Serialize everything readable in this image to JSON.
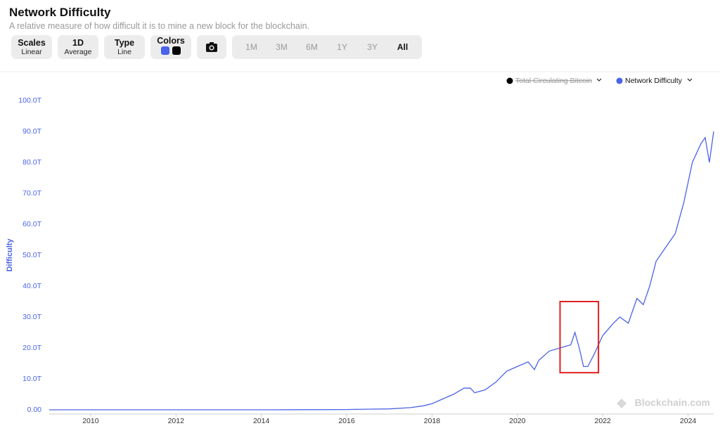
{
  "header": {
    "title": "Network Difficulty",
    "subtitle": "A relative measure of how difficult it is to mine a new block for the blockchain."
  },
  "controls": {
    "scales": {
      "label": "Scales",
      "value": "Linear"
    },
    "resolution": {
      "label": "1D",
      "value": "Average"
    },
    "type": {
      "label": "Type",
      "value": "Line"
    },
    "colors": {
      "label": "Colors"
    },
    "ranges": [
      "1M",
      "3M",
      "6M",
      "1Y",
      "3Y",
      "All"
    ],
    "selected_range": "All"
  },
  "watermark": "Blockchain.com",
  "chart_data": {
    "type": "line",
    "ylabel": "Difficulty",
    "x": [
      2009.03,
      2010,
      2011,
      2012,
      2013,
      2014,
      2015,
      2016,
      2016.5,
      2017,
      2017.5,
      2017.8,
      2018,
      2018.25,
      2018.5,
      2018.75,
      2018.9,
      2019,
      2019.25,
      2019.5,
      2019.75,
      2020,
      2020.25,
      2020.4,
      2020.5,
      2020.75,
      2021,
      2021.25,
      2021.35,
      2021.45,
      2021.55,
      2021.65,
      2021.8,
      2022,
      2022.25,
      2022.4,
      2022.6,
      2022.8,
      2022.95,
      2023.1,
      2023.25,
      2023.5,
      2023.7,
      2023.9,
      2024.1,
      2024.3,
      2024.4,
      2024.5,
      2024.6
    ],
    "series": [
      {
        "name": "Network Difficulty",
        "color": "#4a63e8",
        "values": [
          0,
          0,
          0,
          0,
          0,
          0,
          0.05,
          0.1,
          0.2,
          0.3,
          0.7,
          1.3,
          2,
          3.5,
          5,
          7,
          7,
          5.5,
          6.5,
          9,
          12.5,
          14,
          15.5,
          13,
          16,
          19,
          20,
          21,
          25,
          20,
          14,
          14,
          18,
          24,
          28,
          30,
          28,
          36,
          34,
          40,
          48,
          53,
          57,
          67,
          80,
          86,
          88,
          80,
          90
        ]
      }
    ],
    "hidden_series": [
      {
        "name": "Total Circulating Bitcoin",
        "color": "#000000"
      }
    ],
    "xlim": [
      2009.03,
      2024.6
    ],
    "xticks": [
      2010,
      2012,
      2014,
      2016,
      2018,
      2020,
      2022,
      2024
    ],
    "ylim": [
      0,
      100
    ],
    "yticks": [
      {
        "value": 0,
        "label": "0.00"
      },
      {
        "value": 10,
        "label": "10.0T"
      },
      {
        "value": 20,
        "label": "20.0T"
      },
      {
        "value": 30,
        "label": "30.0T"
      },
      {
        "value": 40,
        "label": "40.0T"
      },
      {
        "value": 50,
        "label": "50.0T"
      },
      {
        "value": 60,
        "label": "60.0T"
      },
      {
        "value": 70,
        "label": "70.0T"
      },
      {
        "value": 80,
        "label": "80.0T"
      },
      {
        "value": 90,
        "label": "90.0T"
      },
      {
        "value": 100,
        "label": "100.0T"
      }
    ],
    "highlight": {
      "x": [
        2021.0,
        2021.9
      ],
      "y": [
        12,
        35
      ],
      "color": "#e02020"
    }
  }
}
